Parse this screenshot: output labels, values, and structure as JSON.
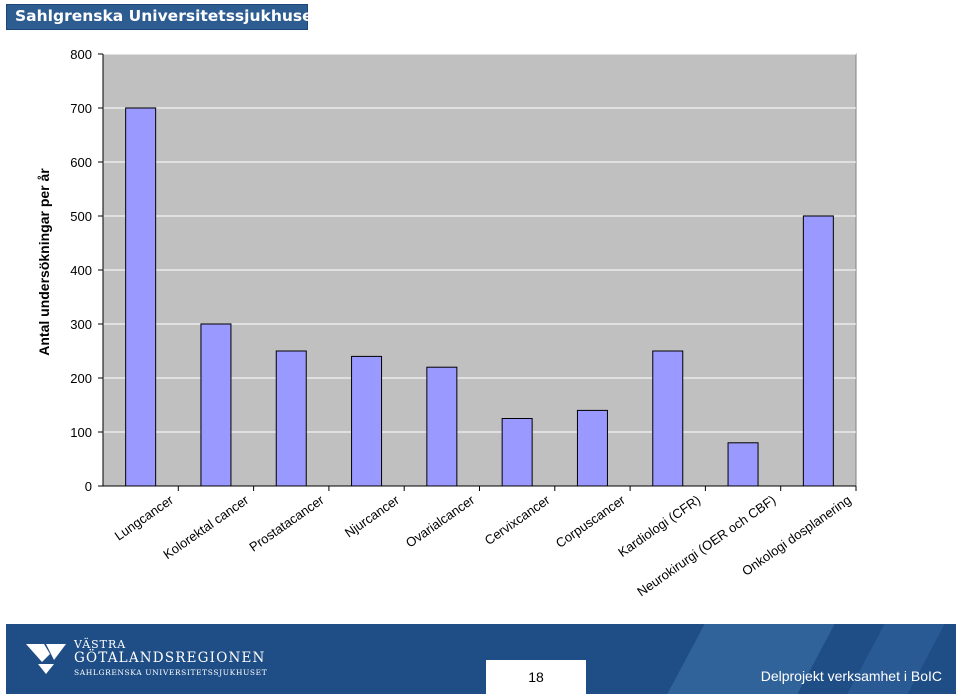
{
  "header": {
    "title": "Sahlgrenska Universitetssjukhuset"
  },
  "chart_data": {
    "type": "bar",
    "title": "",
    "xlabel": "",
    "ylabel": "Antal undersökningar per år",
    "ylim": [
      0,
      800
    ],
    "yticks": [
      0,
      100,
      200,
      300,
      400,
      500,
      600,
      700,
      800
    ],
    "grid": true,
    "legend": "none",
    "categories": [
      "Lungcancer",
      "Kolorektal cancer",
      "Prostatacancer",
      "Njurcancer",
      "Ovarialcancer",
      "Cervixcancer",
      "Corpuscancer",
      "Kardiologi (CFR)",
      "Neurokirurgi (OER och CBF)",
      "Onkologi dosplanering"
    ],
    "values": [
      700,
      300,
      250,
      240,
      220,
      125,
      140,
      250,
      80,
      500
    ],
    "colors": {
      "bar": "#9999ff",
      "bar_border": "#000000",
      "plot_background": "#c0c0c0",
      "gridline": "#ffffff"
    }
  },
  "footer": {
    "logo": {
      "line1": "VÄSTRA",
      "line2": "GÖTALANDSREGIONEN",
      "line3": "SAHLGRENSKA UNIVERSITETSSJUKHUSET"
    },
    "page_number": "18",
    "project_label": "Delprojekt verksamhet i BoIC",
    "colors": {
      "band": "#1f4e86",
      "stripe": "#3e74ab"
    }
  }
}
